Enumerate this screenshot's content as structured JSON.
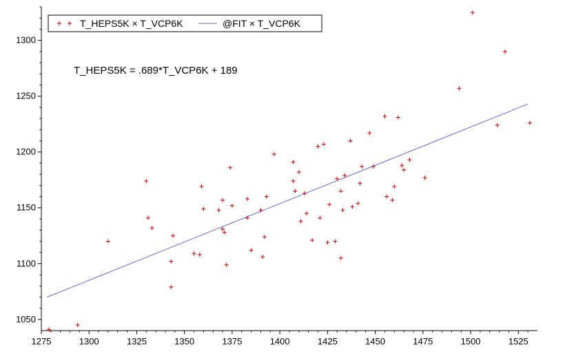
{
  "chart_data": {
    "type": "scatter",
    "title": "",
    "xlabel": "",
    "ylabel": "",
    "xlim": [
      1275,
      1535
    ],
    "ylim": [
      1040,
      1330
    ],
    "x_ticks": [
      1275,
      1300,
      1325,
      1350,
      1375,
      1400,
      1425,
      1450,
      1475,
      1500,
      1525
    ],
    "y_ticks": [
      1050,
      1100,
      1150,
      1200,
      1250,
      1300
    ],
    "grid": false,
    "legend_position": "top-left",
    "annotation": "T_HEPS5K = .689*T_VCP6K + 189",
    "series": [
      {
        "name": "T_HEPS5K × T_VCP6K",
        "kind": "scatter",
        "marker": "+",
        "color": "#cc0000",
        "points": [
          [
            1279,
            1041
          ],
          [
            1294,
            1045
          ],
          [
            1310,
            1120
          ],
          [
            1330,
            1174
          ],
          [
            1331,
            1141
          ],
          [
            1333,
            1132
          ],
          [
            1343,
            1102
          ],
          [
            1343,
            1079
          ],
          [
            1344,
            1125
          ],
          [
            1355,
            1109
          ],
          [
            1358,
            1108
          ],
          [
            1359,
            1169
          ],
          [
            1360,
            1149
          ],
          [
            1368,
            1148
          ],
          [
            1370,
            1157
          ],
          [
            1370,
            1131
          ],
          [
            1371,
            1128
          ],
          [
            1372,
            1099
          ],
          [
            1374,
            1186
          ],
          [
            1375,
            1152
          ],
          [
            1383,
            1158
          ],
          [
            1383,
            1141
          ],
          [
            1385,
            1112
          ],
          [
            1390,
            1148
          ],
          [
            1391,
            1106
          ],
          [
            1392,
            1124
          ],
          [
            1393,
            1160
          ],
          [
            1397,
            1198
          ],
          [
            1407,
            1191
          ],
          [
            1407,
            1174
          ],
          [
            1408,
            1165
          ],
          [
            1410,
            1182
          ],
          [
            1411,
            1138
          ],
          [
            1413,
            1163
          ],
          [
            1414,
            1145
          ],
          [
            1417,
            1121
          ],
          [
            1420,
            1205
          ],
          [
            1421,
            1141
          ],
          [
            1423,
            1207
          ],
          [
            1425,
            1119
          ],
          [
            1426,
            1153
          ],
          [
            1429,
            1120
          ],
          [
            1430,
            1176
          ],
          [
            1432,
            1165
          ],
          [
            1432,
            1105
          ],
          [
            1433,
            1148
          ],
          [
            1434,
            1179
          ],
          [
            1437,
            1210
          ],
          [
            1438,
            1151
          ],
          [
            1441,
            1154
          ],
          [
            1442,
            1172
          ],
          [
            1443,
            1187
          ],
          [
            1447,
            1217
          ],
          [
            1449,
            1187
          ],
          [
            1455,
            1232
          ],
          [
            1456,
            1160
          ],
          [
            1459,
            1157
          ],
          [
            1460,
            1169
          ],
          [
            1462,
            1231
          ],
          [
            1464,
            1188
          ],
          [
            1465,
            1184
          ],
          [
            1468,
            1193
          ],
          [
            1476,
            1177
          ],
          [
            1494,
            1257
          ],
          [
            1501,
            1325
          ],
          [
            1514,
            1224
          ],
          [
            1518,
            1290
          ],
          [
            1531,
            1226
          ]
        ]
      },
      {
        "name": "@FIT × T_VCP6K",
        "kind": "line",
        "color": "#6666dd",
        "x": [
          1278,
          1530
        ],
        "y": [
          1070,
          1243
        ]
      }
    ]
  }
}
